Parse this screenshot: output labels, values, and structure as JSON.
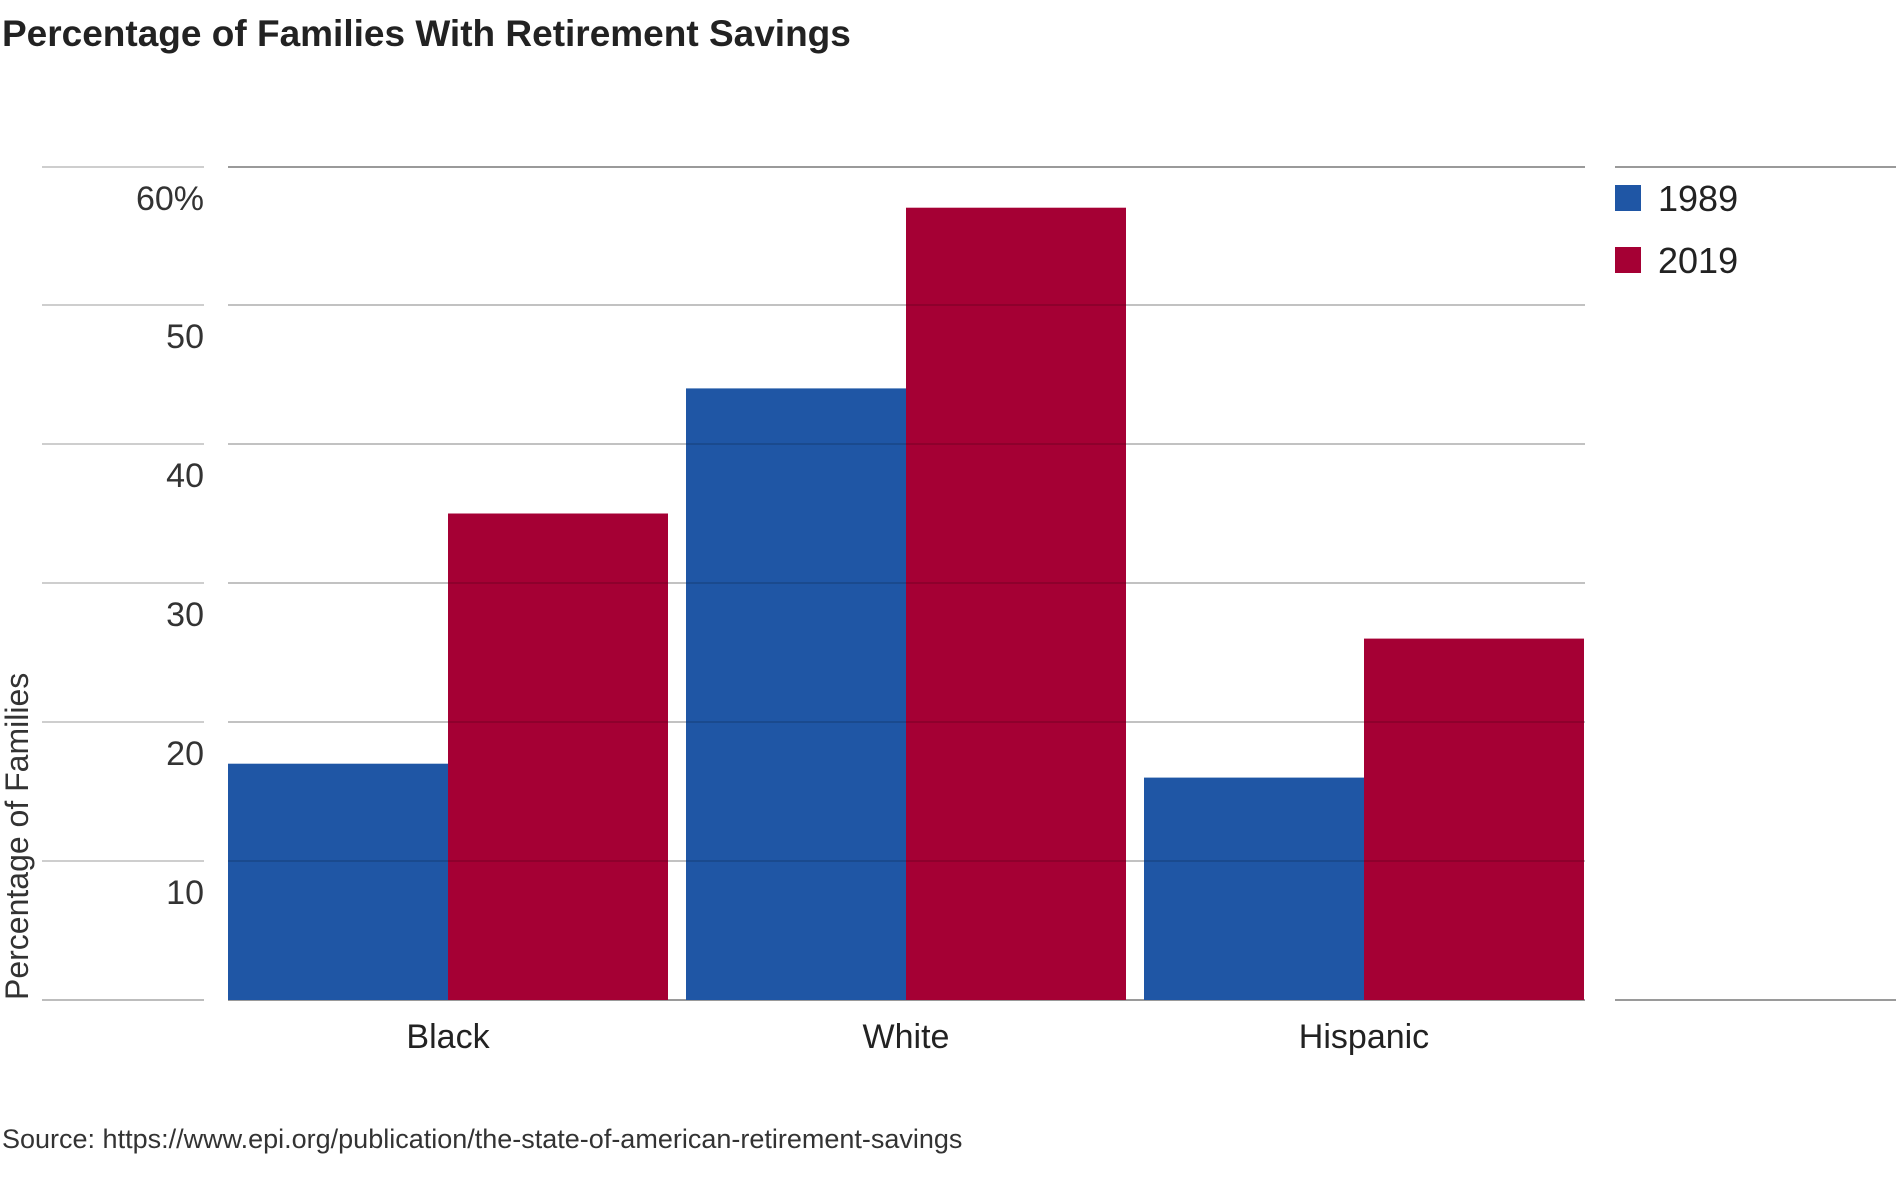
{
  "chart_data": {
    "type": "bar",
    "title": "Percentage of Families With Retirement Savings",
    "xlabel": "",
    "ylabel": "Percentage of Families",
    "categories": [
      "Black",
      "White",
      "Hispanic"
    ],
    "series": [
      {
        "name": "1989",
        "values": [
          17,
          44,
          16
        ],
        "color": "#1f56a5"
      },
      {
        "name": "2019",
        "values": [
          35,
          57,
          26
        ],
        "color": "#a50034"
      }
    ],
    "ylim": [
      0,
      60
    ],
    "yticks": [
      10,
      20,
      30,
      40,
      50,
      60
    ],
    "ytick_labels": [
      "10",
      "20",
      "30",
      "40",
      "50",
      "60%"
    ],
    "grid": true,
    "legend_position": "top-right"
  },
  "source_text": "Source: https://www.epi.org/publication/the-state-of-american-retirement-savings"
}
